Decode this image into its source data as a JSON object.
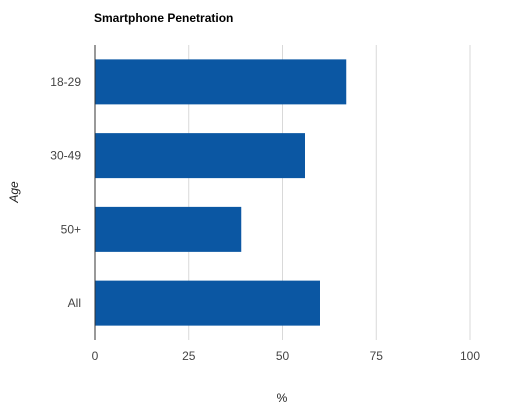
{
  "chart_data": {
    "type": "bar",
    "orientation": "horizontal",
    "title": "Smartphone Penetration",
    "xlabel": "%",
    "ylabel": "Age",
    "categories": [
      "18-29",
      "30-49",
      "50+",
      "All"
    ],
    "values": [
      67,
      56,
      39,
      60
    ],
    "xlim": [
      0,
      100
    ],
    "xticks": [
      0,
      25,
      50,
      75,
      100
    ],
    "grid": true,
    "legend": "none",
    "colors": {
      "bar": "#0b57a3",
      "grid": "#d9d9d9",
      "axis": "#333333"
    }
  }
}
